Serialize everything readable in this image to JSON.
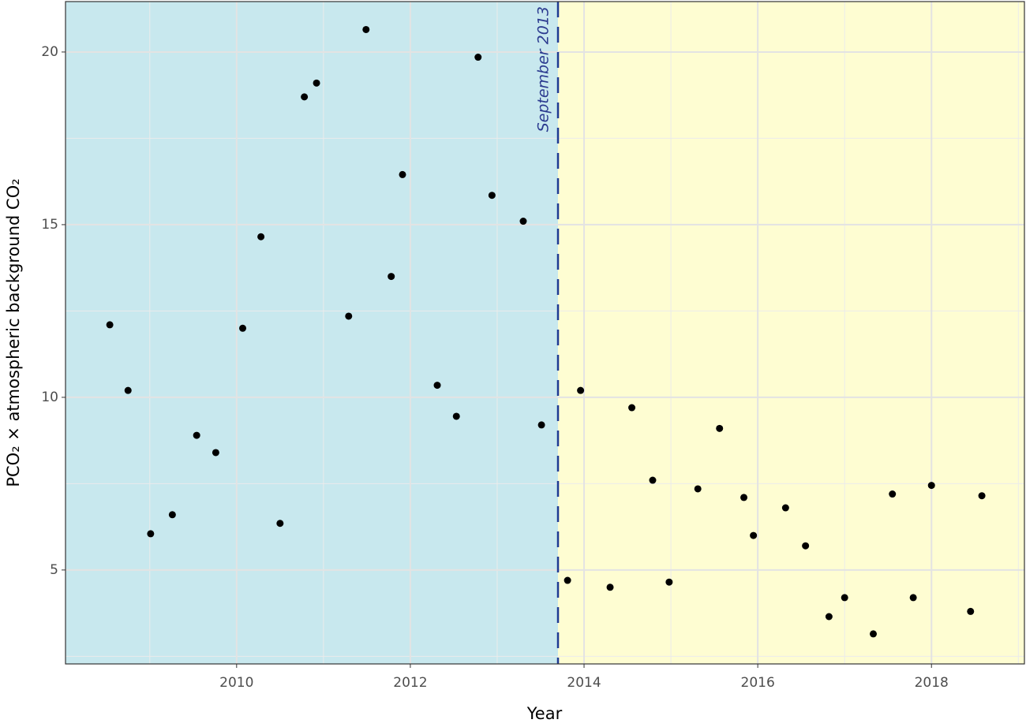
{
  "chart_data": {
    "type": "scatter",
    "x_label": "Year",
    "y_label": "PCO₂ × atmospheric background CO₂",
    "annotation": "September 2013",
    "vline": 2013.7,
    "vline_color": "#1f3a93",
    "before_color": "#c8e8ee",
    "after_color": "#fefdd2",
    "point_color": "#000000",
    "grid": true,
    "xlim": [
      2008.03,
      2019.07
    ],
    "ylim": [
      2.28,
      21.46
    ],
    "xticks": [
      2010,
      2012,
      2014,
      2016,
      2018
    ],
    "yticks": [
      5,
      10,
      15,
      20
    ],
    "minor_xticks": [
      2009,
      2011,
      2013,
      2015,
      2017,
      2019
    ],
    "minor_yticks": [
      2.5,
      7.5,
      12.5,
      17.5
    ],
    "x": [
      2008.54,
      2008.75,
      2009.01,
      2009.26,
      2009.54,
      2009.76,
      2010.07,
      2010.28,
      2010.5,
      2010.78,
      2010.92,
      2011.29,
      2011.49,
      2011.78,
      2011.91,
      2012.31,
      2012.53,
      2012.78,
      2012.94,
      2013.3,
      2013.51,
      2013.81,
      2013.96,
      2014.3,
      2014.55,
      2014.79,
      2014.98,
      2015.31,
      2015.56,
      2015.84,
      2015.95,
      2016.32,
      2016.55,
      2016.82,
      2017.0,
      2017.33,
      2017.55,
      2017.79,
      2018.0,
      2018.45,
      2018.58
    ],
    "values": [
      12.1,
      10.2,
      6.05,
      6.6,
      8.9,
      8.4,
      12.0,
      14.65,
      6.35,
      18.7,
      19.1,
      12.35,
      20.65,
      13.5,
      16.45,
      10.35,
      9.45,
      19.85,
      15.85,
      15.1,
      9.2,
      4.7,
      10.2,
      4.5,
      9.7,
      7.6,
      4.65,
      7.35,
      9.1,
      7.1,
      6.0,
      6.8,
      5.7,
      3.65,
      4.2,
      3.15,
      7.2,
      4.2,
      7.45,
      3.8,
      7.15
    ]
  }
}
